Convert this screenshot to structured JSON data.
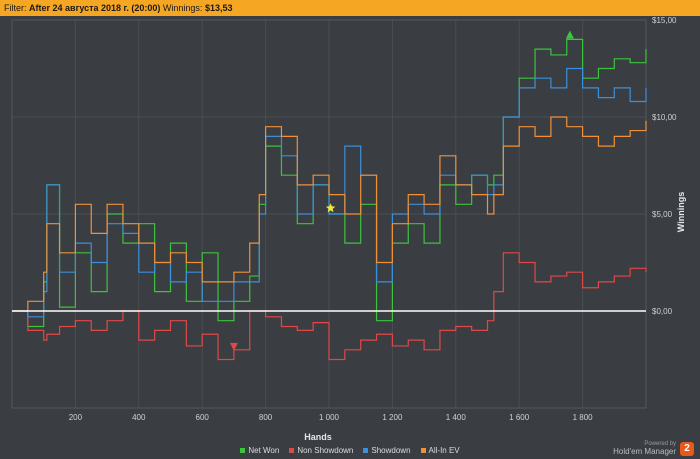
{
  "filter": {
    "prefix": "Filter:",
    "value": "After 24 августа 2018 г. (20:00)",
    "winnings_label": "Winnings:",
    "winnings_value": "$13,53"
  },
  "brand": {
    "powered": "Powered by",
    "name": "Hold'em Manager",
    "logo": "2"
  },
  "colors": {
    "background": "#3a3d42",
    "grid": "#4a4d52",
    "zero_line": "#ffffff",
    "filter_bar": "#f5a623"
  },
  "chart_data": {
    "type": "line",
    "xlabel": "Hands",
    "ylabel": "Winnings",
    "xlim": [
      0,
      2000
    ],
    "ylim": [
      -5,
      15
    ],
    "x_ticks": [
      200,
      400,
      600,
      800,
      1000,
      1200,
      1400,
      1600,
      1800
    ],
    "x_tick_labels": [
      "200",
      "400",
      "600",
      "800",
      "1 000",
      "1 200",
      "1 400",
      "1 600",
      "1 800"
    ],
    "y_ticks": [
      0,
      5,
      10,
      15
    ],
    "y_tick_labels": [
      "$0,00",
      "$5,00",
      "$10,00",
      "$15,00"
    ],
    "grid": true,
    "legend_position": "bottom",
    "x": [
      0,
      50,
      100,
      110,
      150,
      200,
      250,
      300,
      350,
      400,
      450,
      500,
      550,
      600,
      650,
      700,
      750,
      780,
      800,
      850,
      900,
      950,
      1000,
      1050,
      1100,
      1150,
      1200,
      1250,
      1300,
      1350,
      1400,
      1450,
      1500,
      1520,
      1550,
      1600,
      1650,
      1700,
      1750,
      1800,
      1850,
      1900,
      1950,
      2000
    ],
    "series": [
      {
        "name": "Net Won",
        "color": "#3cc43c",
        "values": [
          0,
          -0.8,
          1.5,
          6.5,
          0.2,
          3.0,
          1.0,
          5.0,
          3.5,
          4.5,
          1.0,
          3.5,
          0.5,
          3.0,
          -0.5,
          0.5,
          1.8,
          5.5,
          8.5,
          7.0,
          4.5,
          6.5,
          5.0,
          3.5,
          5.5,
          -0.5,
          3.5,
          4.5,
          3.5,
          6.5,
          5.5,
          7.0,
          6.5,
          7.0,
          10.0,
          12.0,
          13.5,
          13.2,
          14.0,
          12.0,
          12.5,
          13.0,
          12.8,
          13.5
        ]
      },
      {
        "name": "Non Showdown",
        "color": "#e04848",
        "values": [
          0,
          -1.0,
          -1.5,
          -1.2,
          -0.8,
          -0.5,
          -1.0,
          -0.5,
          0,
          -1.5,
          -1.0,
          -0.5,
          -1.8,
          -1.2,
          -2.5,
          -2.0,
          0,
          0,
          -0.3,
          -0.8,
          -1.0,
          -0.6,
          -2.5,
          -2.0,
          -1.5,
          -1.2,
          -1.8,
          -1.5,
          -2.0,
          -1.0,
          -0.8,
          -1.0,
          -0.5,
          1.0,
          3.0,
          2.5,
          1.5,
          1.8,
          2.0,
          1.2,
          1.5,
          1.8,
          2.2,
          2.0
        ]
      },
      {
        "name": "Showdown",
        "color": "#3c8fdc",
        "values": [
          0,
          -0.3,
          1.0,
          6.5,
          2.0,
          3.5,
          2.5,
          4.5,
          4.0,
          2.0,
          2.5,
          1.5,
          2.0,
          0.5,
          0.5,
          1.5,
          1.5,
          5.0,
          9.0,
          8.0,
          5.0,
          6.5,
          5.0,
          8.5,
          7.0,
          1.5,
          5.0,
          5.5,
          5.0,
          7.0,
          6.5,
          7.0,
          6.0,
          6.5,
          10.0,
          11.5,
          12.0,
          11.5,
          12.5,
          11.5,
          11.0,
          11.5,
          10.8,
          11.5
        ]
      },
      {
        "name": "All-In EV",
        "color": "#f0913a",
        "values": [
          0,
          0.5,
          2.0,
          4.5,
          3.0,
          5.5,
          4.0,
          5.5,
          4.5,
          3.5,
          2.5,
          3.0,
          2.5,
          1.5,
          1.5,
          2.0,
          3.5,
          6.0,
          9.5,
          9.0,
          6.5,
          7.0,
          6.0,
          5.0,
          7.0,
          2.5,
          4.5,
          6.0,
          5.5,
          8.0,
          6.5,
          6.0,
          5.0,
          6.0,
          8.5,
          9.5,
          9.0,
          10.0,
          9.5,
          9.0,
          8.5,
          9.0,
          9.3,
          9.8
        ]
      }
    ],
    "markers": [
      {
        "type": "max",
        "shape": "triangle-up",
        "color": "#3cc43c",
        "x": 1760,
        "y": 14.2
      },
      {
        "type": "min",
        "shape": "triangle-down",
        "color": "#e04848",
        "x": 700,
        "y": -1.8
      },
      {
        "type": "current",
        "shape": "star",
        "color": "#f5e542",
        "x": 1005,
        "y": 5.3
      }
    ]
  }
}
